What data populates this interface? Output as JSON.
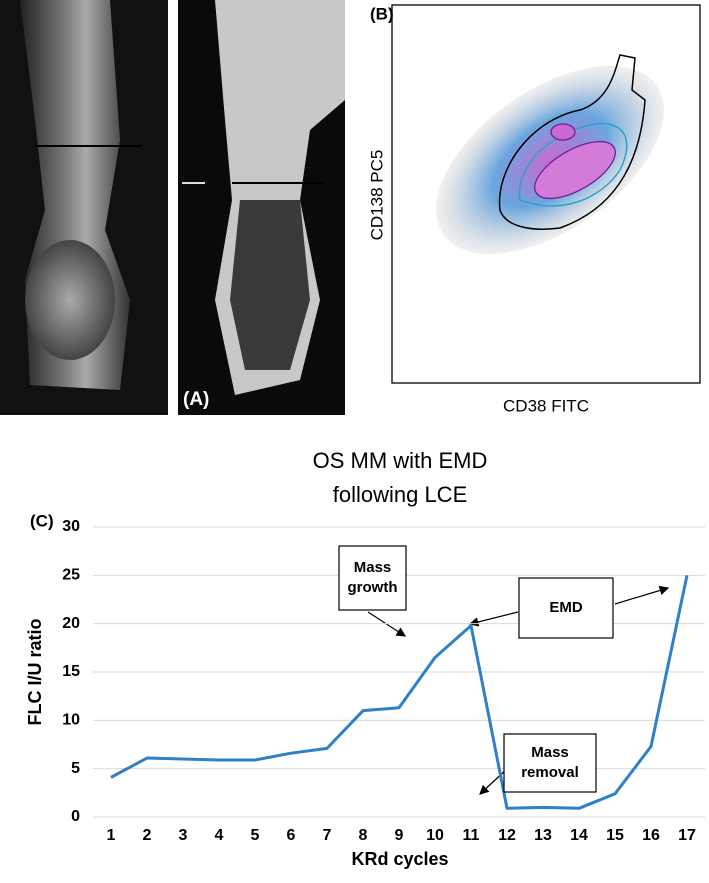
{
  "panel_a": {
    "label": "(A)"
  },
  "panel_b": {
    "label": "(B)",
    "x_axis_label": "CD38 FITC",
    "y_axis_label": "CD138 PC5"
  },
  "chart_data": {
    "type": "line",
    "panel_label": "(C)",
    "title": [
      "OS MM with EMD",
      "following LCE"
    ],
    "x_axis_label": "KRd cycles",
    "y_axis_label": "FLC I/U ratio",
    "categories": [
      "1",
      "2",
      "3",
      "4",
      "5",
      "6",
      "7",
      "8",
      "9",
      "10",
      "11",
      "12",
      "13",
      "14",
      "15",
      "16",
      "17"
    ],
    "values": [
      4.1,
      6.1,
      6.0,
      5.9,
      5.9,
      6.6,
      7.1,
      11.0,
      11.3,
      16.5,
      19.8,
      0.9,
      1.0,
      0.9,
      2.4,
      7.3,
      25.0
    ],
    "color": "#2f7fc9",
    "ylim": [
      0,
      30
    ],
    "yticks": [
      0,
      5,
      10,
      15,
      20,
      25,
      30
    ],
    "grid": true,
    "annotations": [
      {
        "lines": [
          "Mass",
          "growth"
        ]
      },
      {
        "lines": [
          "EMD"
        ]
      },
      {
        "lines": [
          "Mass",
          "removal"
        ]
      }
    ]
  }
}
